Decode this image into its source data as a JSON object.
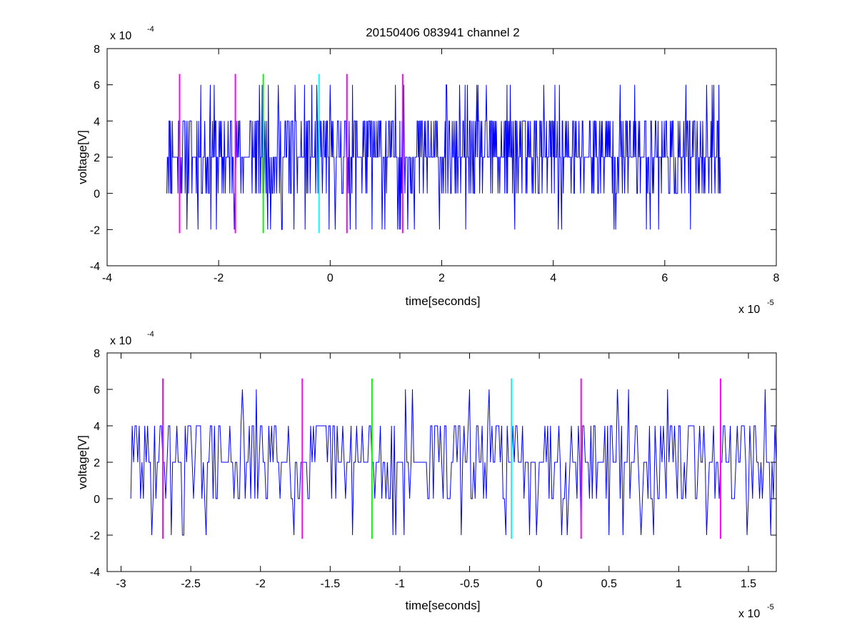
{
  "chart_data": [
    {
      "type": "line",
      "title": "20150406 083941 channel 2",
      "xlabel": "time[seconds]",
      "ylabel": "voltage[V]",
      "x_multiplier": {
        "base": "x 10",
        "exp": "-5"
      },
      "y_multiplier": {
        "base": "x 10",
        "exp": "-4"
      },
      "xlim": [
        -4,
        8
      ],
      "ylim": [
        -4,
        8
      ],
      "xticks": [
        "-4",
        "-2",
        "0",
        "2",
        "4",
        "6",
        "8"
      ],
      "yticks": [
        "-4",
        "-2",
        "0",
        "2",
        "4",
        "6",
        "8"
      ],
      "signal": {
        "color": "#0000ff",
        "x_range": [
          -2.93,
          7.0
        ],
        "levels": [
          -2,
          0,
          2,
          4,
          6
        ],
        "step": 0.01,
        "seed": 11
      },
      "markers": [
        {
          "x": -2.7,
          "color": "#ff00ff",
          "y_range": [
            -2.2,
            6.6
          ]
        },
        {
          "x": -1.7,
          "color": "#ff00ff",
          "y_range": [
            -2.2,
            6.6
          ]
        },
        {
          "x": -1.2,
          "color": "#00ff00",
          "y_range": [
            -2.2,
            6.6
          ]
        },
        {
          "x": -0.2,
          "color": "#00ffff",
          "y_range": [
            -2.2,
            6.6
          ]
        },
        {
          "x": 0.3,
          "color": "#ff00ff",
          "y_range": [
            -2.2,
            6.6
          ]
        },
        {
          "x": 1.3,
          "color": "#ff00ff",
          "y_range": [
            -2.2,
            6.6
          ]
        }
      ],
      "grid": false,
      "legend": "none"
    },
    {
      "type": "line",
      "title": "",
      "xlabel": "time[seconds]",
      "ylabel": "voltage[V]",
      "x_multiplier": {
        "base": "x 10",
        "exp": "-5"
      },
      "y_multiplier": {
        "base": "x 10",
        "exp": "-4"
      },
      "xlim": [
        -3.1,
        1.7
      ],
      "ylim": [
        -4,
        8
      ],
      "xticks": [
        "-3",
        "-2.5",
        "-2",
        "-1.5",
        "-1",
        "-0.5",
        "0",
        "0.5",
        "1",
        "1.5"
      ],
      "yticks": [
        "-4",
        "-2",
        "0",
        "2",
        "4",
        "6",
        "8"
      ],
      "signal": {
        "color": "#0000ff",
        "x_range": [
          -2.93,
          1.7
        ],
        "levels": [
          -2,
          0,
          2,
          4,
          6
        ],
        "step": 0.01,
        "seed": 29
      },
      "markers": [
        {
          "x": -2.7,
          "color": "#ff00ff",
          "y_range": [
            -2.2,
            6.6
          ]
        },
        {
          "x": -1.7,
          "color": "#ff00ff",
          "y_range": [
            -2.2,
            6.6
          ]
        },
        {
          "x": -1.2,
          "color": "#00ff00",
          "y_range": [
            -2.2,
            6.6
          ]
        },
        {
          "x": -0.2,
          "color": "#00ffff",
          "y_range": [
            -2.2,
            6.6
          ]
        },
        {
          "x": 0.3,
          "color": "#ff00ff",
          "y_range": [
            -2.2,
            6.6
          ]
        },
        {
          "x": 1.3,
          "color": "#ff00ff",
          "y_range": [
            -2.2,
            6.6
          ]
        }
      ],
      "grid": false,
      "legend": "none"
    }
  ]
}
